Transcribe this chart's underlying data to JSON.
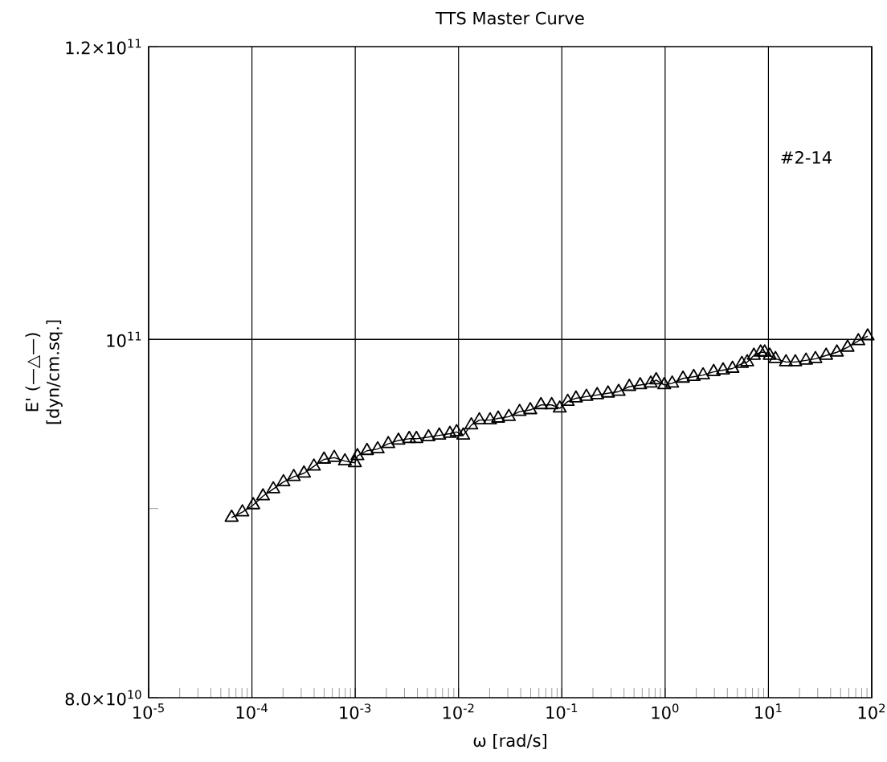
{
  "chart_data": {
    "type": "line",
    "title": "TTS Master Curve",
    "xlabel": "ω  [rad/s]",
    "ylabel": "E' (—△—) [dyn/cm.sq.]",
    "annotations": [
      "#2-14"
    ],
    "log": "xy",
    "grid": "x",
    "marker": "triangle",
    "line_style": "solid",
    "xlim": [
      1e-05,
      100
    ],
    "ylim": [
      80000000000.0,
      120000000000.0
    ],
    "xticks": [
      {
        "value": 1e-05,
        "label": "10$^{-5}$"
      },
      {
        "value": 0.0001,
        "label": "10$^{-4}$"
      },
      {
        "value": 0.001,
        "label": "10$^{-3}$"
      },
      {
        "value": 0.01,
        "label": "10$^{-2}$"
      },
      {
        "value": 0.1,
        "label": "10$^{-1}$"
      },
      {
        "value": 1,
        "label": "10$^{0}$"
      },
      {
        "value": 10,
        "label": "10$^{1}$"
      },
      {
        "value": 100,
        "label": "10$^{2}$"
      }
    ],
    "yticks": [
      {
        "value": 80000000000.0,
        "label": "8.0×10$^{10}$"
      },
      {
        "value": 90000000000.0,
        "label": null
      },
      {
        "value": 100000000000.0,
        "label": "10$^{11}$"
      },
      {
        "value": 120000000000.0,
        "label": "1.2×10$^{11}$"
      }
    ],
    "ref_lines": [
      {
        "axis": "y",
        "value": 100000000000.0
      }
    ],
    "series": [
      {
        "color": "#000000",
        "x": [
          6.36e-05,
          8.08e-05,
          0.000103,
          0.000128,
          0.000161,
          0.000202,
          0.000254,
          0.000319,
          0.000398,
          0.000499,
          0.000626,
          0.000795,
          0.000992,
          0.00105,
          0.0013,
          0.00165,
          0.00209,
          0.00262,
          0.00333,
          0.00391,
          0.00512,
          0.00651,
          0.00825,
          0.00958,
          0.0111,
          0.0133,
          0.0159,
          0.0202,
          0.0242,
          0.0307,
          0.039,
          0.0495,
          0.0628,
          0.0798,
          0.0955,
          0.114,
          0.137,
          0.173,
          0.22,
          0.28,
          0.355,
          0.45,
          0.573,
          0.726,
          0.819,
          0.98,
          1.17,
          1.49,
          1.89,
          2.33,
          2.95,
          3.64,
          4.49,
          5.53,
          6.23,
          7.23,
          8.4,
          9.19,
          10.3,
          11.7,
          14.8,
          18.2,
          23.1,
          28.5,
          36.2,
          46.0,
          58.4,
          74.2,
          91.4
        ],
        "values": [
          89500000000.0,
          89800000000.0,
          90200000000.0,
          90700000000.0,
          91100000000.0,
          91500000000.0,
          91800000000.0,
          92000000000.0,
          92400000000.0,
          92800000000.0,
          92900000000.0,
          92700000000.0,
          92600000000.0,
          93000000000.0,
          93300000000.0,
          93400000000.0,
          93700000000.0,
          93900000000.0,
          94000000000.0,
          94000000000.0,
          94100000000.0,
          94200000000.0,
          94300000000.0,
          94400000000.0,
          94200000000.0,
          94800000000.0,
          95100000000.0,
          95100000000.0,
          95200000000.0,
          95300000000.0,
          95600000000.0,
          95700000000.0,
          96000000000.0,
          96000000000.0,
          95800000000.0,
          96200000000.0,
          96400000000.0,
          96500000000.0,
          96600000000.0,
          96700000000.0,
          96800000000.0,
          97100000000.0,
          97200000000.0,
          97300000000.0,
          97500000000.0,
          97200000000.0,
          97300000000.0,
          97600000000.0,
          97700000000.0,
          97800000000.0,
          98000000000.0,
          98100000000.0,
          98200000000.0,
          98500000000.0,
          98600000000.0,
          99000000000.0,
          99200000000.0,
          99200000000.0,
          99000000000.0,
          98800000000.0,
          98600000000.0,
          98600000000.0,
          98700000000.0,
          98800000000.0,
          99000000000.0,
          99200000000.0,
          99500000000.0,
          99900000000.0,
          100200000000.0
        ]
      }
    ]
  }
}
